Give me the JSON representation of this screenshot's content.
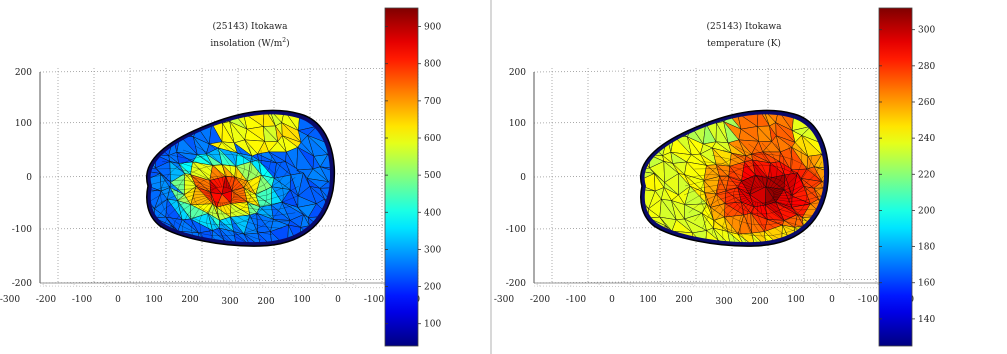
{
  "chart_data": [
    {
      "type": "heatmap",
      "title": "(25143) Itokawa",
      "subtitle_prefix": "insolation (W/m",
      "subtitle_sup": "2",
      "subtitle_suffix": ")",
      "z_ticks": [
        "200",
        "100",
        "0",
        "-100",
        "-200"
      ],
      "x_ticks": [
        "-300",
        "-200",
        "-100",
        "0",
        "100",
        "200",
        "300",
        "200",
        "100",
        "0",
        "-100",
        "-200"
      ],
      "colorbar": {
        "ticks": [
          "900",
          "800",
          "700",
          "600",
          "500",
          "400",
          "300",
          "200",
          "100"
        ],
        "range": [
          40,
          950
        ],
        "colormap": "jet"
      },
      "grid": true,
      "surface": {
        "center_value": 900,
        "edge_value": 250,
        "hot_side": "center"
      }
    },
    {
      "type": "heatmap",
      "title": "(25143) Itokawa",
      "subtitle_prefix": "temperature (K)",
      "subtitle_sup": "",
      "subtitle_suffix": "",
      "z_ticks": [
        "200",
        "100",
        "0",
        "-100",
        "-200"
      ],
      "x_ticks": [
        "-300",
        "-200",
        "-100",
        "0",
        "100",
        "200",
        "300",
        "200",
        "100",
        "0",
        "-100",
        "-200"
      ],
      "colorbar": {
        "ticks": [
          "300",
          "280",
          "260",
          "240",
          "220",
          "200",
          "180",
          "160",
          "140"
        ],
        "range": [
          125,
          312
        ],
        "colormap": "jet"
      },
      "grid": true,
      "surface": {
        "center_value": 305,
        "edge_value": 238,
        "hot_side": "right"
      }
    }
  ]
}
